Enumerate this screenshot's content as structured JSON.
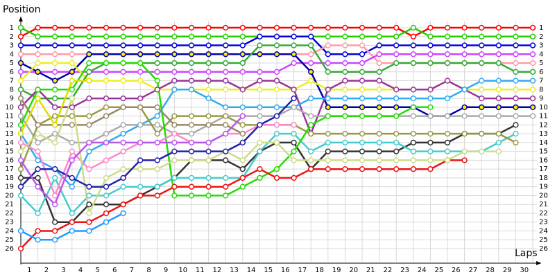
{
  "chart_data": {
    "type": "line",
    "y_label": "Position",
    "x_label": "Laps",
    "x": [
      0,
      1,
      2,
      3,
      4,
      5,
      6,
      7,
      8,
      9,
      10,
      11,
      12,
      13,
      14,
      15,
      16,
      17,
      18,
      19,
      20,
      21,
      22,
      23,
      24,
      25,
      26,
      27,
      28,
      29,
      30
    ],
    "xlim": [
      0,
      30
    ],
    "xticks": [
      1,
      2,
      3,
      4,
      5,
      6,
      7,
      8,
      9,
      10,
      11,
      12,
      13,
      14,
      15,
      16,
      17,
      18,
      19,
      20,
      21,
      22,
      23,
      24,
      25,
      26,
      27,
      28,
      29,
      30
    ],
    "ylim": [
      1,
      26
    ],
    "y_inverted": true,
    "yticks": [
      1,
      2,
      3,
      4,
      5,
      6,
      7,
      8,
      9,
      10,
      11,
      12,
      13,
      14,
      15,
      16,
      17,
      18,
      19,
      20,
      21,
      22,
      23,
      24,
      25,
      26
    ],
    "grid": true,
    "series": [
      {
        "color": "#ff0000",
        "values": [
          2,
          1,
          1,
          1,
          1,
          1,
          1,
          1,
          1,
          1,
          1,
          1,
          1,
          1,
          1,
          1,
          1,
          1,
          1,
          1,
          1,
          1,
          1,
          2,
          1,
          1,
          1,
          1,
          1,
          1,
          1
        ]
      },
      {
        "color": "#22cc00",
        "values": [
          1,
          2,
          2,
          2,
          2,
          2,
          2,
          2,
          2,
          2,
          2,
          2,
          2,
          2,
          2,
          2,
          2,
          2,
          2,
          2,
          2,
          2,
          2,
          1,
          2,
          2,
          2,
          2,
          2,
          2,
          2
        ]
      },
      {
        "color": "#0000dd",
        "values": [
          3,
          3,
          3,
          3,
          3,
          3,
          3,
          3,
          3,
          3,
          3,
          3,
          3,
          3,
          2,
          2,
          2,
          2,
          4,
          4,
          4,
          3,
          3,
          3,
          3,
          3,
          3,
          3,
          3,
          3,
          3
        ]
      },
      {
        "color": "#ff99aa",
        "values": [
          4,
          4,
          4,
          4,
          4,
          4,
          4,
          4,
          4,
          4,
          4,
          4,
          4,
          4,
          4,
          4,
          4,
          4,
          3,
          3,
          3,
          5,
          5,
          5,
          5,
          5,
          5,
          5,
          5,
          5,
          5
        ]
      },
      {
        "color": "#cc44ff",
        "values": [
          6,
          6,
          6,
          6,
          6,
          6,
          6,
          6,
          6,
          6,
          6,
          6,
          6,
          6,
          6,
          6,
          5,
          5,
          5,
          5,
          5,
          4,
          4,
          4,
          4,
          4,
          4,
          4,
          4,
          4,
          4
        ]
      },
      {
        "color": "#0000aa",
        "marker_fill": "#ffee00",
        "values": [
          5,
          6,
          7,
          6,
          4,
          4,
          4,
          4,
          4,
          4,
          4,
          4,
          4,
          4,
          4,
          4,
          4,
          6,
          10,
          10,
          10,
          10,
          10,
          10,
          11,
          11,
          10,
          10,
          10,
          10,
          10
        ]
      },
      {
        "color": "#eeee22",
        "values": [
          7,
          5,
          5,
          5,
          7,
          7,
          7,
          7,
          8,
          8,
          8,
          8,
          8,
          8,
          8,
          8,
          8,
          7,
          8,
          8,
          8,
          8,
          8,
          8,
          8,
          7,
          8,
          8,
          8,
          8,
          8
        ]
      },
      {
        "color": "#33aa33",
        "values": [
          8,
          9,
          9,
          9,
          6,
          5,
          5,
          5,
          5,
          5,
          5,
          5,
          5,
          5,
          3,
          3,
          3,
          3,
          6,
          6,
          6,
          6,
          5,
          5,
          5,
          5,
          5,
          5,
          5,
          6,
          6
        ]
      },
      {
        "color": "#993399",
        "values": [
          10,
          8,
          10,
          10,
          9,
          9,
          9,
          9,
          8,
          7,
          7,
          7,
          7,
          8,
          7,
          7,
          8,
          13,
          8,
          7,
          7,
          7,
          8,
          8,
          8,
          7,
          8,
          9,
          9,
          9,
          9
        ]
      },
      {
        "color": "#33aaee",
        "values": [
          13,
          16,
          17,
          19,
          15,
          14,
          13,
          12,
          11,
          8,
          8,
          9,
          10,
          10,
          10,
          10,
          10,
          9,
          9,
          9,
          9,
          9,
          9,
          9,
          9,
          9,
          8,
          7,
          7,
          7,
          7
        ]
      },
      {
        "color": "#aaaaaa",
        "values": [
          11,
          14,
          13,
          14,
          14,
          13,
          12,
          12,
          12,
          13,
          13,
          12,
          11,
          11,
          11,
          11,
          10,
          11,
          11,
          11,
          11,
          11,
          11,
          11,
          11,
          11,
          11,
          11,
          11,
          11,
          11
        ]
      },
      {
        "color": "#333333",
        "values": [
          18,
          18,
          23,
          23,
          21,
          21,
          21,
          20,
          19,
          18,
          16,
          16,
          16,
          17,
          15,
          14,
          14,
          17,
          15,
          15,
          15,
          15,
          15,
          14,
          14,
          14,
          13,
          13,
          13,
          12,
          null
        ]
      },
      {
        "color": "#44cccc",
        "values": [
          20,
          22,
          18,
          22,
          20,
          20,
          19,
          19,
          19,
          18,
          18,
          18,
          18,
          18,
          15,
          13,
          13,
          15,
          14,
          14,
          14,
          14,
          14,
          15,
          15,
          15,
          15,
          15,
          14,
          13,
          null
        ]
      },
      {
        "color": "#999944",
        "values": [
          17,
          12,
          11,
          11,
          11,
          10,
          10,
          10,
          13,
          11,
          11,
          11,
          11,
          12,
          12,
          12,
          12,
          13,
          13,
          13,
          13,
          13,
          13,
          13,
          13,
          13,
          13,
          13,
          13,
          14,
          null
        ]
      },
      {
        "color": "#22dd00",
        "values": [
          12,
          8,
          8,
          8,
          5,
          5,
          5,
          5,
          7,
          20,
          20,
          20,
          20,
          19,
          18,
          17,
          15,
          12,
          11,
          11,
          11,
          11,
          11,
          10,
          10,
          null,
          null,
          null,
          null,
          null,
          null
        ]
      },
      {
        "color": "#ee1111",
        "values": [
          26,
          24,
          24,
          23,
          23,
          22,
          21,
          20,
          20,
          19,
          19,
          19,
          19,
          18,
          17,
          18,
          18,
          17,
          17,
          17,
          17,
          17,
          17,
          17,
          17,
          16,
          16,
          null,
          null,
          null,
          null
        ]
      },
      {
        "color": "#ff88cc",
        "values": [
          14,
          15,
          20,
          15,
          17,
          16,
          15,
          14,
          14,
          13,
          14,
          14,
          13,
          13,
          12,
          12,
          12,
          null,
          null,
          null,
          null,
          null,
          null,
          null,
          null,
          null,
          null,
          null,
          null,
          null,
          null
        ]
      },
      {
        "color": "#998866",
        "values": [
          9,
          12,
          12,
          12,
          12,
          11,
          10,
          10,
          10,
          12,
          12,
          12,
          12,
          13,
          null,
          null,
          null,
          null,
          null,
          null,
          null,
          null,
          null,
          null,
          null,
          null,
          null,
          null,
          null,
          null,
          null
        ]
      },
      {
        "color": "#ccdd88",
        "values": [
          15,
          13,
          14,
          9,
          22,
          18,
          17,
          17,
          17,
          16,
          16,
          16,
          15,
          16,
          14,
          14,
          16,
          16,
          16,
          16,
          16,
          16,
          16,
          16,
          16,
          16,
          15,
          15,
          15,
          null,
          null
        ]
      },
      {
        "color": "#2299ff",
        "values": [
          24,
          25,
          25,
          24,
          24,
          23,
          22,
          null,
          null,
          null,
          null,
          null,
          null,
          null,
          null,
          null,
          null,
          null,
          null,
          null,
          null,
          null,
          null,
          null,
          null,
          null,
          null,
          null,
          null,
          null,
          null
        ]
      },
      {
        "color": "#2222aa",
        "values": [
          19,
          17,
          17,
          18,
          19,
          19,
          18,
          16,
          16,
          15,
          15,
          15,
          15,
          14,
          12,
          11,
          9,
          null,
          null,
          null,
          null,
          null,
          null,
          null,
          null,
          null,
          null,
          null,
          null,
          null,
          null
        ]
      },
      {
        "color": "#bb55ee",
        "values": [
          16,
          19,
          21,
          16,
          14,
          14,
          14,
          14,
          14,
          14,
          14,
          14,
          13,
          11,
          null,
          null,
          null,
          null,
          null,
          null,
          null,
          null,
          null,
          null,
          null,
          null,
          null,
          null,
          null,
          null,
          null
        ]
      },
      {
        "color": "#dddd00",
        "values": [
          13,
          9,
          12,
          7,
          7,
          null,
          null,
          null,
          null,
          null,
          null,
          null,
          null,
          null,
          null,
          null,
          null,
          null,
          null,
          null,
          null,
          null,
          null,
          null,
          null,
          null,
          null,
          null,
          null,
          null,
          null
        ]
      }
    ]
  }
}
